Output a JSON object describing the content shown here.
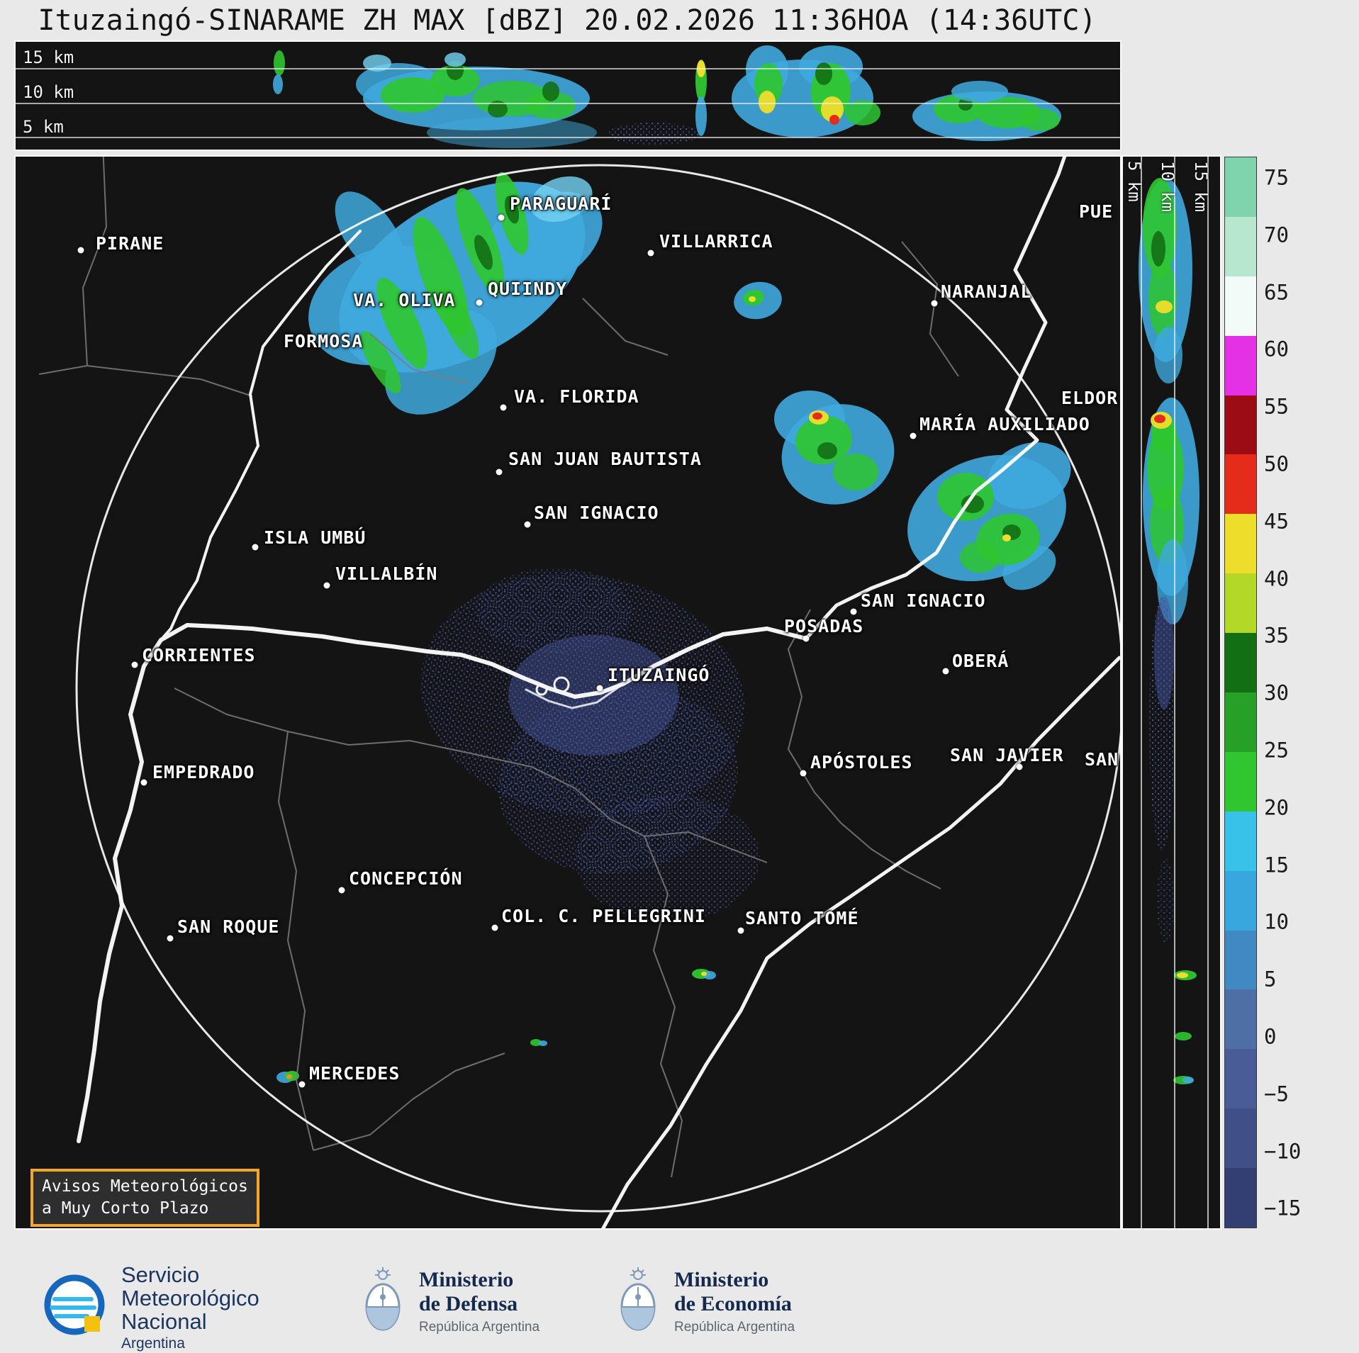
{
  "title": "Ituzaingó-SINARAME ZH MAX [dBZ] 20.02.2026 11:36HOA (14:36UTC)",
  "top_panel": {
    "height_labels": [
      "15 km",
      "10 km",
      "5 km"
    ]
  },
  "right_panel": {
    "height_labels": [
      "5 km",
      "10 km",
      "15 km"
    ]
  },
  "colorbar": {
    "unit": "dBZ",
    "labels": [
      "75",
      "70",
      "65",
      "60",
      "55",
      "50",
      "45",
      "40",
      "35",
      "30",
      "25",
      "20",
      "15",
      "10",
      "5",
      "0",
      "−5",
      "−10",
      "−15"
    ],
    "segments_top_to_bottom": [
      "#7fd4ad",
      "#b7e8cf",
      "#f2fbf7",
      "#e531e5",
      "#9c0c14",
      "#e52b19",
      "#eede2b",
      "#b3d828",
      "#136f13",
      "#27a027",
      "#2fc62f",
      "#38c2ea",
      "#38a7dd",
      "#4189c2",
      "#4e6fa6",
      "#4a5c97",
      "#404f88",
      "#333e73"
    ]
  },
  "palette": {
    "b": "#3fa9dd",
    "c": "#74d2f2",
    "g": "#2fc62f",
    "dk": "#136f13",
    "y": "#eede2b",
    "r": "#e52b19",
    "o": "#f0941c",
    "sl": "#44549e"
  },
  "map": {
    "radar_site": "ITUZAINGÓ",
    "cities": [
      {
        "name": "PIRANE",
        "l": [
          113,
          108
        ],
        "d": [
          92,
          132
        ]
      },
      {
        "name": "PARAGUARÍ",
        "l": [
          697,
          52
        ],
        "d": [
          685,
          86
        ]
      },
      {
        "name": "PUE",
        "l": [
          1500,
          63
        ],
        "d": null
      },
      {
        "name": "VILLARRICA",
        "l": [
          908,
          105
        ],
        "d": [
          896,
          136
        ]
      },
      {
        "name": "VA. OLIVA",
        "l": [
          476,
          188
        ],
        "d": null
      },
      {
        "name": "QUIINDY",
        "l": [
          666,
          172
        ],
        "d": [
          654,
          206
        ]
      },
      {
        "name": "FORMOSA",
        "l": [
          378,
          246
        ],
        "d": null
      },
      {
        "name": "NARANJAL",
        "l": [
          1305,
          176
        ],
        "d": [
          1296,
          207
        ]
      },
      {
        "name": "VA. FLORIDA",
        "l": [
          703,
          324
        ],
        "d": [
          688,
          354
        ]
      },
      {
        "name": "ELDOR",
        "l": [
          1475,
          326
        ],
        "d": null
      },
      {
        "name": "MARÍA AUXILIADO",
        "l": [
          1275,
          363
        ],
        "d": [
          1266,
          394
        ]
      },
      {
        "name": "SAN JUAN BAUTISTA",
        "l": [
          695,
          412
        ],
        "d": [
          682,
          445
        ]
      },
      {
        "name": "SAN IGNACIO",
        "l": [
          731,
          488
        ],
        "d": [
          722,
          519
        ]
      },
      {
        "name": "ISLA UMBÚ",
        "l": [
          350,
          523
        ],
        "d": [
          338,
          551
        ]
      },
      {
        "name": "VILLALBÍN",
        "l": [
          451,
          574
        ],
        "d": [
          439,
          605
        ]
      },
      {
        "name": "SAN IGNACIO",
        "l": [
          1192,
          612
        ],
        "d": [
          1182,
          642
        ]
      },
      {
        "name": "POSADAS",
        "l": [
          1084,
          648
        ],
        "d": [
          1115,
          680
        ]
      },
      {
        "name": "OBERÁ",
        "l": [
          1321,
          697
        ],
        "d": [
          1312,
          726
        ]
      },
      {
        "name": "CORRIENTES",
        "l": [
          178,
          689
        ],
        "d": [
          168,
          717
        ]
      },
      {
        "name": "ITUZAINGÓ",
        "l": [
          835,
          717
        ],
        "d": [
          824,
          750
        ]
      },
      {
        "name": "EMPEDRADO",
        "l": [
          193,
          854
        ],
        "d": [
          181,
          883
        ]
      },
      {
        "name": "APÓSTOLES",
        "l": [
          1121,
          840
        ],
        "d": [
          1111,
          870
        ]
      },
      {
        "name": "SAN JAVIER",
        "l": [
          1318,
          830
        ],
        "d": [
          1416,
          861
        ]
      },
      {
        "name": "SAN",
        "l": [
          1508,
          836
        ],
        "d": null
      },
      {
        "name": "CONCEPCIÓN",
        "l": [
          470,
          1004
        ],
        "d": [
          460,
          1035
        ]
      },
      {
        "name": "COL. C. PELLEGRINI",
        "l": [
          685,
          1057
        ],
        "d": [
          676,
          1088
        ]
      },
      {
        "name": "SANTO TOMÉ",
        "l": [
          1029,
          1060
        ],
        "d": [
          1023,
          1092
        ]
      },
      {
        "name": "SAN ROQUE",
        "l": [
          228,
          1072
        ],
        "d": [
          218,
          1103
        ]
      },
      {
        "name": "MERCEDES",
        "l": [
          414,
          1279
        ],
        "d": [
          404,
          1309
        ]
      }
    ]
  },
  "echoes": [
    [
      "m",
      630,
      170,
      190,
      110,
      -30,
      "b",
      0.95,
      0
    ],
    [
      "m",
      520,
      210,
      110,
      80,
      -20,
      "b",
      0.9,
      0
    ],
    [
      "m",
      740,
      120,
      95,
      60,
      -30,
      "b",
      0.9,
      0
    ],
    [
      "m",
      600,
      290,
      90,
      60,
      -40,
      "b",
      0.85,
      0
    ],
    [
      "m",
      500,
      110,
      35,
      70,
      -35,
      "b",
      0.85,
      0
    ],
    [
      "m",
      770,
      60,
      45,
      30,
      -20,
      "c",
      0.8,
      0
    ],
    [
      "m",
      600,
      170,
      26,
      90,
      -20,
      "g",
      0.9,
      0
    ],
    [
      "m",
      655,
      120,
      22,
      80,
      -20,
      "g",
      0.9,
      0
    ],
    [
      "m",
      700,
      80,
      18,
      60,
      -15,
      "g",
      0.9,
      0
    ],
    [
      "m",
      545,
      235,
      22,
      70,
      -25,
      "g",
      0.9,
      0
    ],
    [
      "m",
      515,
      290,
      16,
      50,
      -30,
      "g",
      0.85,
      0
    ],
    [
      "m",
      625,
      235,
      18,
      55,
      -25,
      "g",
      0.85,
      0
    ],
    [
      "m",
      660,
      135,
      10,
      26,
      -20,
      "dk",
      0.9,
      0
    ],
    [
      "m",
      700,
      75,
      9,
      20,
      -15,
      "dk",
      0.9,
      0
    ],
    [
      "m",
      1047,
      203,
      34,
      26,
      -10,
      "b",
      0.9,
      0
    ],
    [
      "m",
      1041,
      199,
      15,
      11,
      -10,
      "g",
      0.95,
      0
    ],
    [
      "m",
      1039,
      201,
      5,
      4,
      0,
      "y",
      1,
      0
    ],
    [
      "m",
      1160,
      420,
      80,
      70,
      -15,
      "b",
      0.9,
      0
    ],
    [
      "m",
      1120,
      370,
      50,
      40,
      0,
      "b",
      0.9,
      0
    ],
    [
      "m",
      1140,
      400,
      40,
      34,
      -10,
      "g",
      0.9,
      0
    ],
    [
      "m",
      1185,
      445,
      32,
      26,
      0,
      "g",
      0.85,
      0
    ],
    [
      "m",
      1145,
      415,
      14,
      12,
      0,
      "dk",
      0.9,
      0
    ],
    [
      "m",
      1133,
      368,
      14,
      10,
      0,
      "y",
      0.95,
      0
    ],
    [
      "m",
      1131,
      366,
      7,
      5,
      0,
      "r",
      1,
      0
    ],
    [
      "m",
      1370,
      510,
      115,
      85,
      -20,
      "b",
      0.9,
      0
    ],
    [
      "m",
      1430,
      450,
      60,
      45,
      -20,
      "b",
      0.9,
      0
    ],
    [
      "m",
      1430,
      580,
      40,
      28,
      -30,
      "b",
      0.85,
      0
    ],
    [
      "m",
      1340,
      480,
      40,
      34,
      0,
      "g",
      0.9,
      0
    ],
    [
      "m",
      1400,
      540,
      45,
      36,
      -10,
      "g",
      0.9,
      0
    ],
    [
      "m",
      1360,
      565,
      28,
      22,
      0,
      "g",
      0.85,
      0
    ],
    [
      "m",
      1350,
      490,
      16,
      13,
      0,
      "dk",
      0.9,
      0
    ],
    [
      "m",
      1405,
      530,
      13,
      11,
      0,
      "dk",
      0.9,
      0
    ],
    [
      "m",
      1398,
      538,
      6,
      5,
      0,
      "y",
      1,
      0
    ],
    [
      "m",
      800,
      760,
      230,
      170,
      10,
      "sl",
      0.85,
      1
    ],
    [
      "m",
      850,
      880,
      170,
      130,
      -10,
      "sl",
      0.8,
      1
    ],
    [
      "m",
      920,
      990,
      130,
      90,
      0,
      "sl",
      0.7,
      1
    ],
    [
      "m",
      760,
      640,
      110,
      60,
      0,
      "sl",
      0.6,
      1
    ],
    [
      "m",
      815,
      760,
      120,
      85,
      0,
      "sl",
      0.45,
      0
    ],
    [
      "m",
      967,
      1153,
      13,
      7,
      0,
      "g",
      0.95,
      0
    ],
    [
      "m",
      979,
      1155,
      9,
      6,
      0,
      "b",
      0.9,
      0
    ],
    [
      "m",
      971,
      1153,
      4,
      3,
      0,
      "y",
      1,
      0
    ],
    [
      "m",
      734,
      1250,
      8,
      5,
      0,
      "g",
      0.9,
      0
    ],
    [
      "m",
      744,
      1251,
      6,
      4,
      0,
      "b",
      0.9,
      0
    ],
    [
      "m",
      380,
      1299,
      12,
      8,
      0,
      "b",
      0.9,
      0
    ],
    [
      "m",
      390,
      1297,
      10,
      7,
      0,
      "g",
      0.95,
      0
    ],
    [
      "m",
      386,
      1298,
      4,
      3,
      0,
      "o",
      1,
      0
    ],
    [
      "t",
      372,
      30,
      8,
      18,
      0,
      "g",
      0.9,
      0
    ],
    [
      "t",
      370,
      60,
      7,
      14,
      0,
      "b",
      0.9,
      0
    ],
    [
      "t",
      650,
      80,
      160,
      45,
      0,
      "b",
      0.9,
      0
    ],
    [
      "t",
      540,
      60,
      60,
      30,
      0,
      "b",
      0.85,
      0
    ],
    [
      "t",
      560,
      75,
      45,
      25,
      0,
      "g",
      0.9,
      0
    ],
    [
      "t",
      620,
      55,
      35,
      22,
      0,
      "g",
      0.9,
      0
    ],
    [
      "t",
      700,
      80,
      55,
      25,
      0,
      "g",
      0.85,
      0
    ],
    [
      "t",
      755,
      90,
      35,
      20,
      0,
      "g",
      0.85,
      0
    ],
    [
      "t",
      620,
      40,
      12,
      14,
      0,
      "dk",
      0.9,
      0
    ],
    [
      "t",
      755,
      70,
      12,
      14,
      0,
      "dk",
      0.9,
      0
    ],
    [
      "t",
      680,
      95,
      14,
      12,
      0,
      "dk",
      0.85,
      0
    ],
    [
      "t",
      510,
      30,
      20,
      12,
      0,
      "c",
      0.8,
      0
    ],
    [
      "t",
      620,
      25,
      15,
      10,
      0,
      "c",
      0.8,
      0
    ],
    [
      "t",
      700,
      128,
      120,
      22,
      0,
      "b",
      0.5,
      0
    ],
    [
      "t",
      900,
      130,
      65,
      16,
      0,
      "sl",
      0.85,
      1
    ],
    [
      "t",
      967,
      55,
      8,
      30,
      0,
      "g",
      0.95,
      0
    ],
    [
      "t",
      967,
      38,
      6,
      12,
      0,
      "y",
      1,
      0
    ],
    [
      "t",
      967,
      105,
      8,
      28,
      0,
      "b",
      0.9,
      0
    ],
    [
      "t",
      1110,
      80,
      100,
      55,
      0,
      "b",
      0.9,
      0
    ],
    [
      "t",
      1060,
      40,
      30,
      35,
      0,
      "b",
      0.9,
      0
    ],
    [
      "t",
      1062,
      60,
      20,
      30,
      0,
      "g",
      0.9,
      0
    ],
    [
      "t",
      1060,
      85,
      12,
      16,
      0,
      "y",
      0.95,
      0
    ],
    [
      "t",
      1150,
      35,
      45,
      30,
      0,
      "b",
      0.9,
      0
    ],
    [
      "t",
      1150,
      70,
      28,
      40,
      0,
      "g",
      0.95,
      0
    ],
    [
      "t",
      1152,
      95,
      16,
      18,
      0,
      "y",
      0.95,
      0
    ],
    [
      "t",
      1155,
      110,
      7,
      7,
      0,
      "r",
      1,
      0
    ],
    [
      "t",
      1140,
      45,
      12,
      16,
      0,
      "dk",
      0.9,
      0
    ],
    [
      "t",
      1195,
      100,
      25,
      18,
      0,
      "g",
      0.85,
      0
    ],
    [
      "t",
      1370,
      105,
      105,
      35,
      0,
      "b",
      0.9,
      0
    ],
    [
      "t",
      1330,
      95,
      35,
      20,
      0,
      "g",
      0.9,
      0
    ],
    [
      "t",
      1400,
      100,
      45,
      22,
      0,
      "g",
      0.9,
      0
    ],
    [
      "t",
      1445,
      110,
      28,
      16,
      0,
      "g",
      0.85,
      0
    ],
    [
      "t",
      1340,
      88,
      10,
      9,
      0,
      "dk",
      0.9,
      0
    ],
    [
      "t",
      1360,
      70,
      40,
      15,
      0,
      "b",
      0.85,
      0
    ],
    [
      "r",
      60,
      160,
      38,
      130,
      0,
      "b",
      0.9,
      0
    ],
    [
      "r",
      52,
      100,
      24,
      70,
      0,
      "g",
      0.9,
      0
    ],
    [
      "r",
      56,
      200,
      20,
      55,
      0,
      "g",
      0.85,
      0
    ],
    [
      "r",
      50,
      130,
      10,
      25,
      0,
      "dk",
      0.9,
      0
    ],
    [
      "r",
      58,
      212,
      12,
      9,
      0,
      "y",
      0.95,
      0
    ],
    [
      "r",
      64,
      280,
      20,
      40,
      0,
      "b",
      0.8,
      0
    ],
    [
      "r",
      68,
      480,
      40,
      140,
      0,
      "b",
      0.9,
      0
    ],
    [
      "r",
      60,
      440,
      26,
      60,
      0,
      "g",
      0.9,
      0
    ],
    [
      "r",
      62,
      520,
      24,
      55,
      0,
      "g",
      0.85,
      0
    ],
    [
      "r",
      58,
      390,
      18,
      26,
      0,
      "g",
      0.9,
      0
    ],
    [
      "r",
      54,
      372,
      15,
      12,
      0,
      "y",
      0.95,
      0
    ],
    [
      "r",
      52,
      370,
      8,
      6,
      0,
      "r",
      1,
      0
    ],
    [
      "r",
      70,
      600,
      22,
      60,
      0,
      "b",
      0.8,
      0
    ],
    [
      "r",
      55,
      800,
      18,
      180,
      0,
      "sl",
      0.85,
      1
    ],
    [
      "r",
      58,
      700,
      14,
      80,
      0,
      "sl",
      0.5,
      0
    ],
    [
      "r",
      60,
      1050,
      12,
      60,
      0,
      "sl",
      0.6,
      1
    ],
    [
      "r",
      88,
      1155,
      16,
      7,
      0,
      "g",
      0.95,
      0
    ],
    [
      "r",
      84,
      1155,
      8,
      4,
      0,
      "y",
      1,
      0
    ],
    [
      "r",
      85,
      1241,
      12,
      6,
      0,
      "g",
      0.9,
      0
    ],
    [
      "r",
      85,
      1303,
      14,
      6,
      0,
      "g",
      0.9,
      0
    ],
    [
      "r",
      92,
      1303,
      8,
      5,
      0,
      "b",
      0.9,
      0
    ]
  ],
  "warning_box": {
    "line1": "Avisos Meteorológicos",
    "line2": "a Muy Corto Plazo"
  },
  "footer": {
    "smn": {
      "line1": "Servicio",
      "line2": "Meteorológico",
      "line3": "Nacional",
      "line4": "Argentina"
    },
    "defensa": {
      "line1": "Ministerio",
      "line2": "de Defensa",
      "line3": "República Argentina"
    },
    "economia": {
      "line1": "Ministerio",
      "line2": "de Economía",
      "line3": "República Argentina"
    }
  }
}
